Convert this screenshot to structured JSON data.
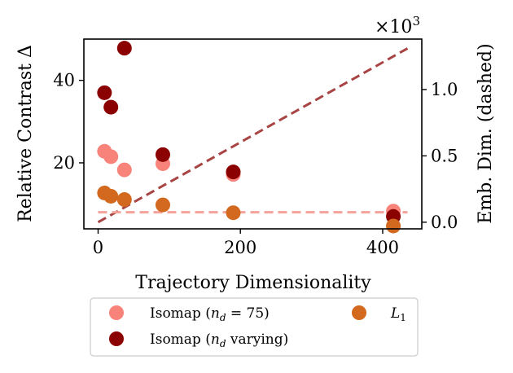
{
  "chart_data": {
    "type": "scatter",
    "xlabel": "Trajectory Dimensionality",
    "ylabel": "Relative Contrast Δ",
    "y2label": "Emb. Dim. (dashed)",
    "y2_multiplier": "×10",
    "y2_multiplier_exp": "3",
    "xlim": [
      -20,
      455
    ],
    "ylim": [
      4,
      50
    ],
    "y2lim": [
      -0.05,
      1.38
    ],
    "xticks": [
      0,
      200,
      400
    ],
    "yticks": [
      20,
      40
    ],
    "y2ticks": [
      0.0,
      0.5,
      1.0
    ],
    "xtick_labels": [
      "0",
      "200",
      "400"
    ],
    "ytick_labels": [
      "20",
      "40"
    ],
    "y2tick_labels": [
      "0.0",
      "0.5",
      "1.0"
    ],
    "legend_position": "below",
    "series": [
      {
        "name": "Isomap (n_d = 75)",
        "legend_main": "Isomap (",
        "legend_var": "n",
        "legend_sub": "d",
        "legend_rest": " = 75)",
        "color": "#f8837a",
        "x": [
          9,
          18,
          37,
          91,
          190,
          415
        ],
        "y": [
          22.8,
          21.5,
          18.3,
          19.8,
          17.2,
          8.3
        ]
      },
      {
        "name": "Isomap (n_d varying)",
        "legend_main": "Isomap (",
        "legend_var": "n",
        "legend_sub": "d",
        "legend_rest": " varying)",
        "color": "#8b0000",
        "x": [
          9,
          18,
          37,
          91,
          190,
          415
        ],
        "y": [
          37.0,
          33.5,
          47.8,
          22.0,
          17.8,
          7.0
        ]
      },
      {
        "name": "L1",
        "legend_main": "L",
        "legend_sub": "1",
        "color": "#d2691e",
        "x": [
          9,
          18,
          37,
          91,
          190,
          415
        ],
        "y": [
          12.7,
          11.9,
          11.1,
          9.8,
          7.9,
          4.7
        ]
      }
    ],
    "dashed_lines": [
      {
        "name": "Isomap (n_d varying) embedding dimension",
        "color": "#a84444",
        "x": [
          0,
          435
        ],
        "y2": [
          0.0,
          1.31
        ]
      },
      {
        "name": "Isomap (n_d = 75) embedding dimension",
        "color": "#f4a29a",
        "x": [
          0,
          435
        ],
        "y2": [
          0.075,
          0.075
        ]
      }
    ]
  }
}
